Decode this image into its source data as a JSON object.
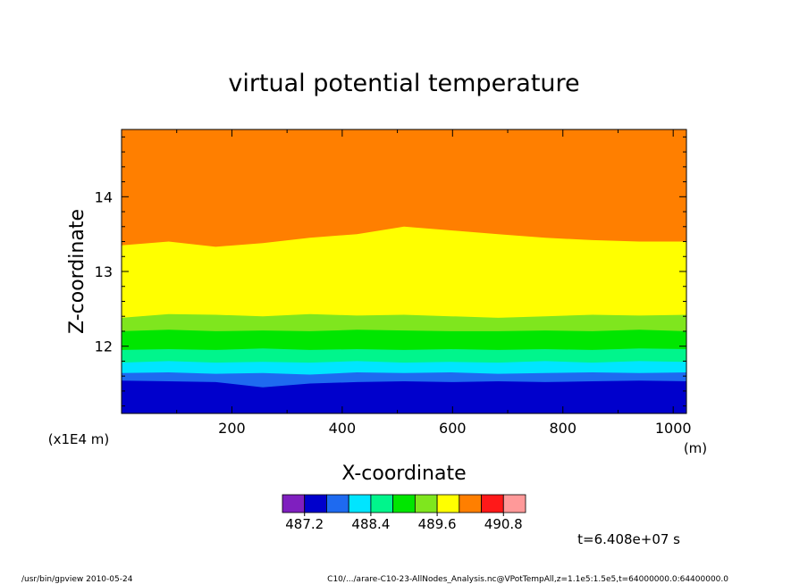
{
  "chart_data": {
    "type": "heatmap",
    "title": "virtual potential temperature",
    "xlabel": "X-coordinate",
    "ylabel": "Z-coordinate",
    "x_unit": "(m)",
    "y_unit": "(x1E4 m)",
    "xlim": [
      0,
      1024
    ],
    "ylim": [
      11.1,
      14.9
    ],
    "x_ticks": [
      "200",
      "400",
      "600",
      "800",
      "1000"
    ],
    "x_tick_values": [
      200,
      400,
      600,
      800,
      1000
    ],
    "y_ticks": [
      "12",
      "13",
      "14"
    ],
    "y_tick_values": [
      12,
      13,
      14
    ],
    "colorbar": {
      "colors": [
        "#7f1fbf",
        "#0000cc",
        "#1e6af0",
        "#00e5ff",
        "#00f58c",
        "#00e600",
        "#7fe61e",
        "#ffff00",
        "#ff7f00",
        "#ff1919",
        "#ff9999"
      ],
      "labels": [
        "487.2",
        "488.4",
        "489.6",
        "490.8"
      ]
    },
    "bands": [
      {
        "color": "#ff7f00",
        "top_z": [
          14.9,
          14.9
        ]
      },
      {
        "color": "#ffff00",
        "top_z": [
          13.35,
          13.4,
          13.33,
          13.38,
          13.45,
          13.5,
          13.6,
          13.55,
          13.5,
          13.45,
          13.42,
          13.4,
          13.4
        ]
      },
      {
        "color": "#7fe61e",
        "top_z": [
          12.38,
          12.43,
          12.42,
          12.4,
          12.43,
          12.41,
          12.42,
          12.4,
          12.38,
          12.4,
          12.42,
          12.41,
          12.42
        ]
      },
      {
        "color": "#00e600",
        "top_z": [
          12.2,
          12.22,
          12.2,
          12.21,
          12.2,
          12.22,
          12.21,
          12.2,
          12.2,
          12.21,
          12.2,
          12.22,
          12.2
        ]
      },
      {
        "color": "#00f58c",
        "top_z": [
          11.95,
          11.96,
          11.95,
          11.97,
          11.95,
          11.96,
          11.95,
          11.96,
          11.95,
          11.96,
          11.95,
          11.97,
          11.96
        ]
      },
      {
        "color": "#00e5ff",
        "top_z": [
          11.78,
          11.8,
          11.78,
          11.79,
          11.78,
          11.8,
          11.78,
          11.79,
          11.78,
          11.8,
          11.78,
          11.8,
          11.79
        ]
      },
      {
        "color": "#1e6af0",
        "top_z": [
          11.64,
          11.65,
          11.63,
          11.64,
          11.62,
          11.65,
          11.64,
          11.65,
          11.63,
          11.64,
          11.65,
          11.64,
          11.65
        ]
      },
      {
        "color": "#0000cc",
        "top_z": [
          11.54,
          11.53,
          11.52,
          11.45,
          11.5,
          11.52,
          11.53,
          11.52,
          11.53,
          11.52,
          11.53,
          11.54,
          11.53
        ]
      }
    ]
  },
  "annotations": {
    "time": "t=6.408e+07 s",
    "footer_left": "/usr/bin/gpview   2010-05-24",
    "footer_right": "C10/.../arare-C10-23-AllNodes_Analysis.nc@VPotTempAll,z=1.1e5:1.5e5,t=64000000.0:64400000.0"
  }
}
